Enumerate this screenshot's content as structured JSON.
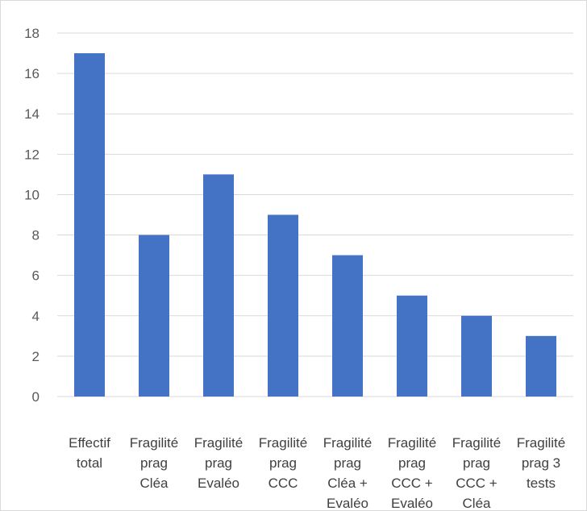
{
  "chart_data": {
    "type": "bar",
    "title": "",
    "xlabel": "",
    "ylabel": "",
    "categories": [
      [
        "Effectif",
        "total"
      ],
      [
        "Fragilité",
        "prag",
        "Cléa"
      ],
      [
        "Fragilité",
        "prag",
        "Evaléo"
      ],
      [
        "Fragilité",
        "prag",
        "CCC"
      ],
      [
        "Fragilité",
        "prag",
        "Cléa +",
        "Evaléo"
      ],
      [
        "Fragilité",
        "prag",
        "CCC +",
        "Evaléo"
      ],
      [
        "Fragilité",
        "prag",
        "CCC +",
        "Cléa"
      ],
      [
        "Fragilité",
        "prag 3",
        "tests"
      ]
    ],
    "values": [
      17,
      8,
      11,
      9,
      7,
      5,
      4,
      3
    ],
    "ylim": [
      0,
      18
    ],
    "yticks": [
      "0",
      "2",
      "4",
      "6",
      "8",
      "10",
      "12",
      "14",
      "16",
      "18"
    ],
    "grid": true,
    "legend": "none",
    "colors": {
      "bar": "#4472c4",
      "grid": "#d9d9d9",
      "tick_text": "#595959",
      "category_text": "#404040"
    }
  }
}
